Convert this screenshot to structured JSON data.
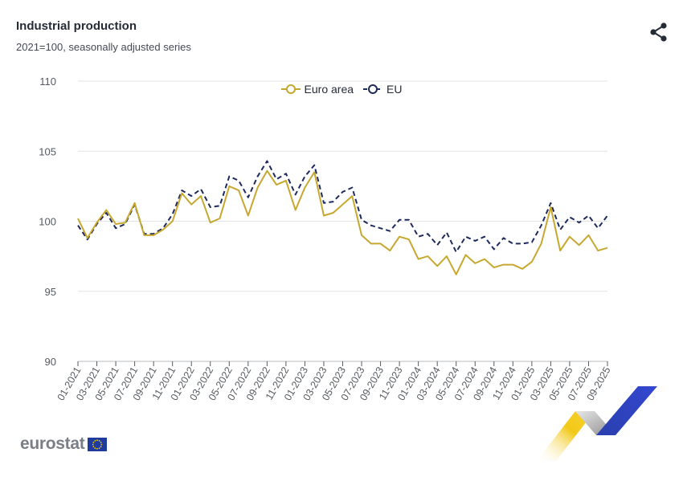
{
  "header": {
    "title": "Industrial production",
    "subtitle": "2021=100, seasonally adjusted series"
  },
  "icons": {
    "share": "share-icon"
  },
  "logo": {
    "text": "eurostat",
    "flag": "eu-flag-icon"
  },
  "colors": {
    "euro_area": "#c7a82e",
    "eu": "#1f2a5c",
    "grid": "#e3e3e3",
    "axis_text": "#555a60"
  },
  "chart_data": {
    "type": "line",
    "title": "Industrial production",
    "subtitle": "2021=100, seasonally adjusted series",
    "xlabel": "",
    "ylabel": "",
    "ylim": [
      90,
      110
    ],
    "yticks": [
      90,
      95,
      100,
      105,
      110
    ],
    "grid": true,
    "legend_position": "top-center",
    "x": [
      "01-2021",
      "02-2021",
      "03-2021",
      "04-2021",
      "05-2021",
      "06-2021",
      "07-2021",
      "08-2021",
      "09-2021",
      "10-2021",
      "11-2021",
      "12-2021",
      "01-2022",
      "02-2022",
      "03-2022",
      "04-2022",
      "05-2022",
      "06-2022",
      "07-2022",
      "08-2022",
      "09-2022",
      "10-2022",
      "11-2022",
      "12-2022",
      "01-2023",
      "02-2023",
      "03-2023",
      "04-2023",
      "05-2023",
      "06-2023",
      "07-2023",
      "08-2023",
      "09-2023",
      "10-2023",
      "11-2023",
      "12-2023",
      "01-2024",
      "02-2024",
      "03-2024",
      "04-2024",
      "05-2024",
      "06-2024",
      "07-2024",
      "08-2024",
      "09-2024",
      "10-2024",
      "11-2024",
      "12-2024",
      "01-2025",
      "02-2025",
      "03-2025",
      "04-2025",
      "05-2025",
      "06-2025",
      "07-2025",
      "08-2025",
      "09-2025"
    ],
    "x_tick_labels": [
      "01-2021",
      "03-2021",
      "05-2021",
      "07-2021",
      "09-2021",
      "11-2021",
      "01-2022",
      "03-2022",
      "05-2022",
      "07-2022",
      "09-2022",
      "11-2022",
      "01-2023",
      "03-2023",
      "05-2023",
      "07-2023",
      "09-2023",
      "11-2023",
      "01-2024",
      "03-2024",
      "05-2024",
      "07-2024",
      "09-2024",
      "11-2024",
      "01-2025",
      "03-2025",
      "05-2025",
      "07-2025",
      "09-2025"
    ],
    "series": [
      {
        "name": "Euro area",
        "color": "#c7a82e",
        "style": "solid",
        "values": [
          100.2,
          98.8,
          99.9,
          100.8,
          99.8,
          99.9,
          101.3,
          99.0,
          99.0,
          99.4,
          100.0,
          102.0,
          101.2,
          101.8,
          99.9,
          100.2,
          102.5,
          102.2,
          100.4,
          102.4,
          103.6,
          102.6,
          102.9,
          100.8,
          102.4,
          103.5,
          100.4,
          100.6,
          101.2,
          101.8,
          99.0,
          98.4,
          98.4,
          97.9,
          98.9,
          98.7,
          97.3,
          97.5,
          96.8,
          97.5,
          96.2,
          97.6,
          97.0,
          97.3,
          96.7,
          96.9,
          96.9,
          96.6,
          97.1,
          98.4,
          101.0,
          97.9,
          98.9,
          98.3,
          99.0,
          97.9,
          98.1
        ]
      },
      {
        "name": "EU",
        "color": "#1f2a5c",
        "style": "dashed",
        "values": [
          99.7,
          98.7,
          99.8,
          100.6,
          99.5,
          99.8,
          101.2,
          99.1,
          99.1,
          99.5,
          100.5,
          102.2,
          101.8,
          102.3,
          101.0,
          101.1,
          103.2,
          102.9,
          101.7,
          103.2,
          104.3,
          103.0,
          103.4,
          101.9,
          103.2,
          104.0,
          101.3,
          101.4,
          102.1,
          102.4,
          100.1,
          99.7,
          99.5,
          99.3,
          100.1,
          100.1,
          98.9,
          99.1,
          98.3,
          99.2,
          97.8,
          98.9,
          98.6,
          98.9,
          98.0,
          98.8,
          98.4,
          98.4,
          98.5,
          99.7,
          101.3,
          99.4,
          100.3,
          99.9,
          100.4,
          99.5,
          100.4
        ]
      }
    ]
  }
}
